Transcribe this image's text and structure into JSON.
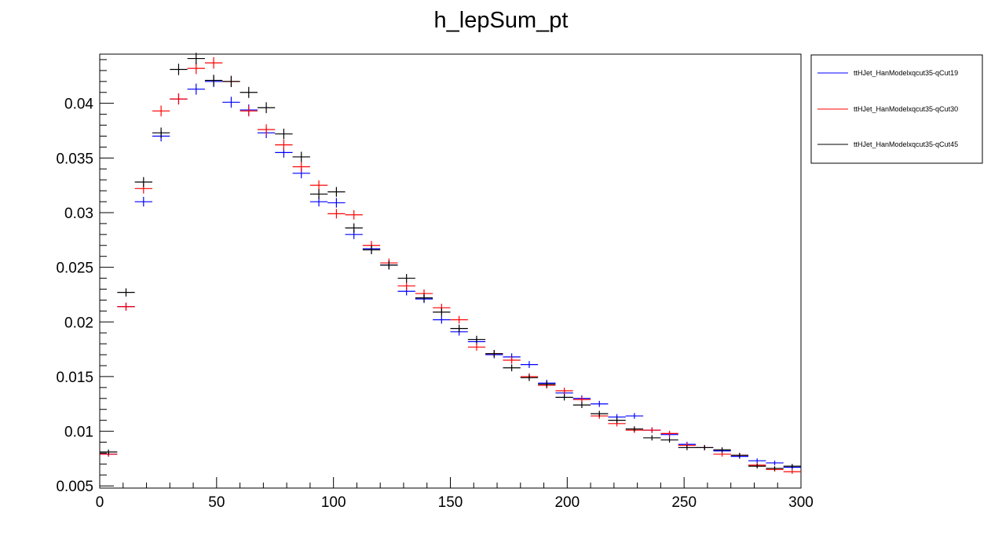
{
  "chart_data": {
    "type": "scatter",
    "title": "h_lepSum_pt",
    "xlabel": "",
    "ylabel": "",
    "xlim": [
      0,
      300
    ],
    "ylim": [
      0.0048,
      0.0445
    ],
    "bin_width": 7.5,
    "x_ticks": [
      "0",
      "50",
      "100",
      "150",
      "200",
      "250",
      "300"
    ],
    "y_ticks": [
      "0.005",
      "0.01",
      "0.015",
      "0.02",
      "0.025",
      "0.03",
      "0.035",
      "0.04"
    ],
    "grid": false,
    "legend_position": "top-right outside plot",
    "x": [
      3.75,
      11.25,
      18.75,
      26.25,
      33.75,
      41.25,
      48.75,
      56.25,
      63.75,
      71.25,
      78.75,
      86.25,
      93.75,
      101.25,
      108.75,
      116.25,
      123.75,
      131.25,
      138.75,
      146.25,
      153.75,
      161.25,
      168.75,
      176.25,
      183.75,
      191.25,
      198.75,
      206.25,
      213.75,
      221.25,
      228.75,
      236.25,
      243.75,
      251.25,
      258.75,
      266.25,
      273.75,
      281.25,
      288.75,
      296.25
    ],
    "series": [
      {
        "name": "ttHJet_HanModelxqcut35-qCut19",
        "color": "#0000ff",
        "values": [
          0.0079,
          0.0214,
          0.031,
          0.037,
          0.0404,
          0.0413,
          0.042,
          0.0401,
          0.0394,
          0.0373,
          0.0355,
          0.0336,
          0.031,
          0.0309,
          0.028,
          0.0267,
          0.0252,
          0.0228,
          0.0221,
          0.0202,
          0.0191,
          0.0182,
          0.017,
          0.0168,
          0.0161,
          0.0144,
          0.0135,
          0.013,
          0.0125,
          0.0113,
          0.0114,
          0.0101,
          0.0097,
          0.0088,
          0.0085,
          0.0082,
          0.0077,
          0.0073,
          0.0071,
          0.0067
        ]
      },
      {
        "name": "ttHJet_HanModelxqcut35-qCut30",
        "color": "#ff0000",
        "values": [
          0.0079,
          0.0214,
          0.0322,
          0.0393,
          0.0404,
          0.0432,
          0.0437,
          0.042,
          0.0393,
          0.0376,
          0.0362,
          0.0342,
          0.0325,
          0.0299,
          0.0298,
          0.027,
          0.0254,
          0.0233,
          0.0226,
          0.0213,
          0.0202,
          0.0177,
          0.0171,
          0.0165,
          0.015,
          0.0142,
          0.0137,
          0.0129,
          0.0114,
          0.0107,
          0.0101,
          0.0101,
          0.0098,
          0.0087,
          0.0085,
          0.0079,
          0.0078,
          0.0069,
          0.0065,
          0.0063
        ]
      },
      {
        "name": "ttHJet_HanModelxqcut35-qCut45",
        "color": "#000000",
        "values": [
          0.0081,
          0.0227,
          0.0328,
          0.0373,
          0.0431,
          0.0441,
          0.0421,
          0.042,
          0.041,
          0.0396,
          0.0372,
          0.0351,
          0.0317,
          0.0319,
          0.0286,
          0.0266,
          0.0252,
          0.024,
          0.0222,
          0.0209,
          0.0194,
          0.0184,
          0.0171,
          0.0158,
          0.0149,
          0.0143,
          0.0131,
          0.0124,
          0.0116,
          0.011,
          0.0102,
          0.0094,
          0.0092,
          0.0085,
          0.0085,
          0.0083,
          0.0078,
          0.0068,
          0.0066,
          0.0068
        ]
      }
    ]
  }
}
